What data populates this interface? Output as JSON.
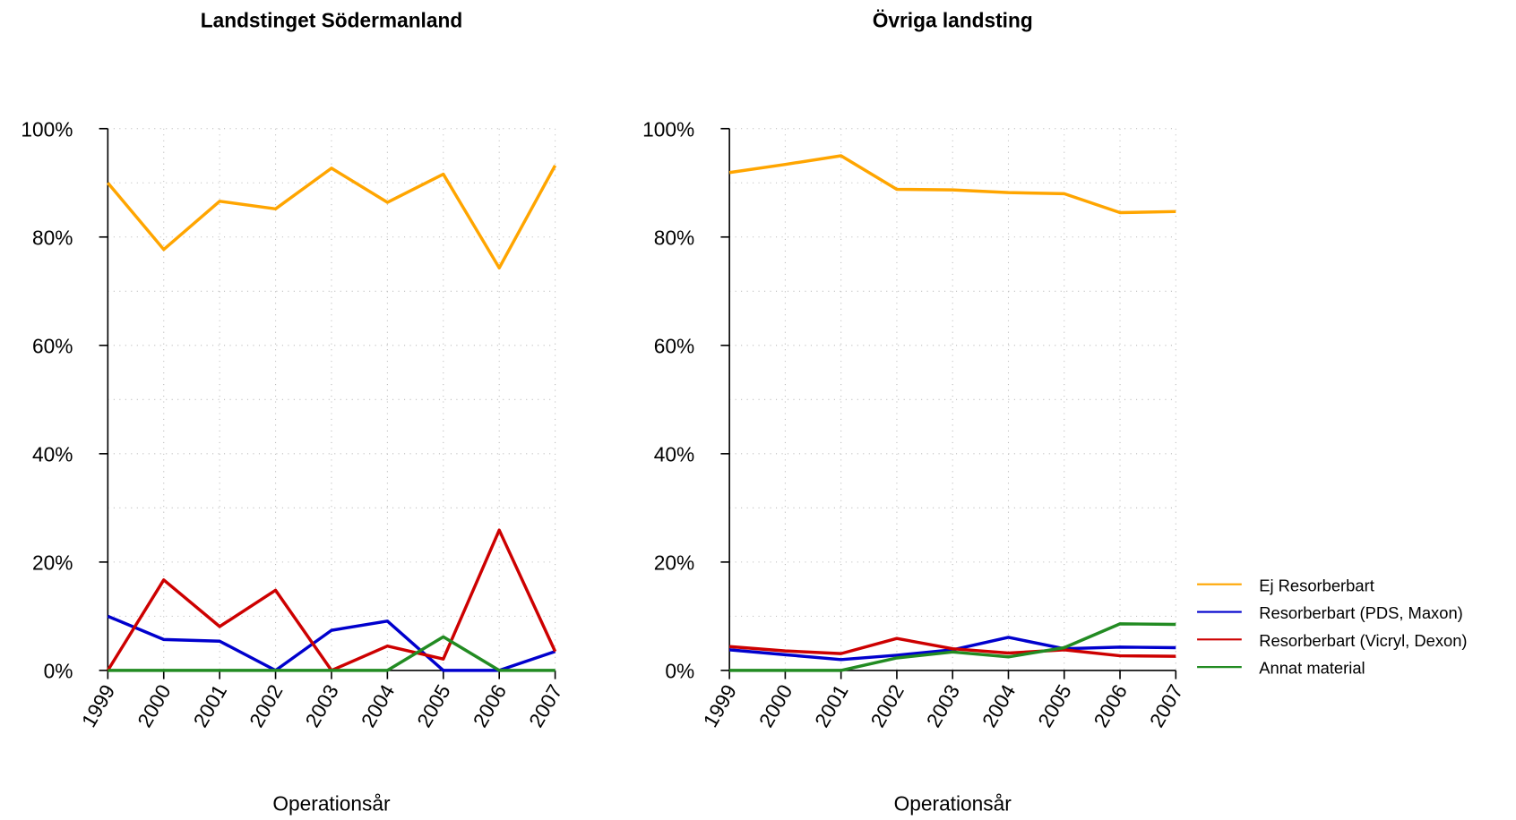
{
  "chart_data": [
    {
      "type": "line",
      "title": "Landstinget Södermanland",
      "xlabel": "Operationsår",
      "categories": [
        "1999",
        "2000",
        "2001",
        "2002",
        "2003",
        "2004",
        "2005",
        "2006",
        "2007"
      ],
      "ylim": [
        0,
        100
      ],
      "yticks": [
        {
          "value": 0,
          "label": "0%"
        },
        {
          "value": 20,
          "label": "20%"
        },
        {
          "value": 40,
          "label": "40%"
        },
        {
          "value": 60,
          "label": "60%"
        },
        {
          "value": 80,
          "label": "80%"
        },
        {
          "value": 100,
          "label": "100%"
        }
      ],
      "grid": true,
      "series": [
        {
          "color": "#ffa500",
          "values": [
            90,
            77.7,
            86.6,
            85.2,
            92.7,
            86.4,
            91.6,
            74.3,
            93.2
          ]
        },
        {
          "color": "#0000cd",
          "values": [
            10,
            5.7,
            5.4,
            0,
            7.4,
            9.1,
            0,
            0,
            3.5
          ]
        },
        {
          "color": "#cd0000",
          "values": [
            0,
            16.7,
            8.1,
            14.8,
            0,
            4.5,
            2.1,
            25.9,
            3.5
          ]
        },
        {
          "color": "#228b22",
          "values": [
            0,
            0,
            0,
            0,
            0,
            0,
            6.2,
            0,
            0
          ]
        }
      ]
    },
    {
      "type": "line",
      "title": "Övriga landsting",
      "xlabel": "Operationsår",
      "categories": [
        "1999",
        "2000",
        "2001",
        "2002",
        "2003",
        "2004",
        "2005",
        "2006",
        "2007"
      ],
      "ylim": [
        0,
        100
      ],
      "yticks": [
        {
          "value": 0,
          "label": "0%"
        },
        {
          "value": 20,
          "label": "20%"
        },
        {
          "value": 40,
          "label": "40%"
        },
        {
          "value": 60,
          "label": "60%"
        },
        {
          "value": 80,
          "label": "80%"
        },
        {
          "value": 100,
          "label": "100%"
        }
      ],
      "grid": true,
      "legend": "right",
      "series": [
        {
          "name": "Ej Resorberbart",
          "color": "#ffa500",
          "values": [
            91.9,
            93.4,
            95,
            88.8,
            88.7,
            88.2,
            88.0,
            84.5,
            84.7
          ]
        },
        {
          "name": "Resorberbart (PDS, Maxon)",
          "color": "#0000cd",
          "values": [
            3.8,
            2.9,
            2.0,
            2.8,
            3.8,
            6.1,
            4.0,
            4.3,
            4.2
          ]
        },
        {
          "name": "Resorberbart (Vicryl, Dexon)",
          "color": "#cd0000",
          "values": [
            4.4,
            3.6,
            3.1,
            5.9,
            4.0,
            3.2,
            3.8,
            2.7,
            2.6
          ]
        },
        {
          "name": "Annat material",
          "color": "#228b22",
          "values": [
            0,
            0,
            0,
            2.3,
            3.4,
            2.5,
            4.2,
            8.6,
            8.5
          ]
        }
      ]
    }
  ]
}
